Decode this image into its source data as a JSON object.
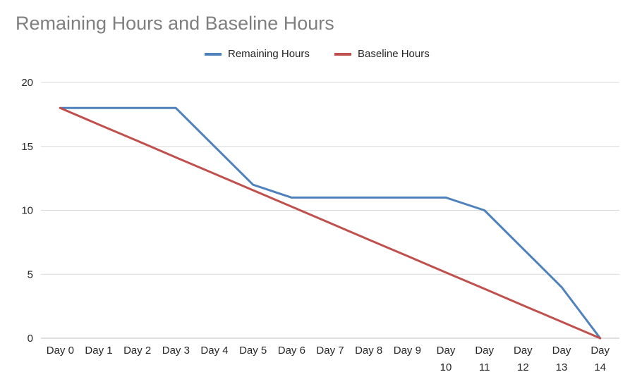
{
  "chart_data": {
    "type": "line",
    "title": "Remaining Hours and Baseline Hours",
    "xlabel": "",
    "ylabel": "",
    "categories": [
      "Day 0",
      "Day 1",
      "Day 2",
      "Day 3",
      "Day 4",
      "Day 5",
      "Day 6",
      "Day 7",
      "Day 8",
      "Day 9",
      "Day 10",
      "Day 11",
      "Day 12",
      "Day 13",
      "Day 14"
    ],
    "ylim": [
      0,
      20
    ],
    "yticks": [
      0,
      5,
      10,
      15,
      20
    ],
    "grid": true,
    "legend_position": "top",
    "series": [
      {
        "name": "Remaining Hours",
        "color": "#4f81bd",
        "values": [
          18,
          18,
          18,
          18,
          15,
          12,
          11,
          11,
          11,
          11,
          11,
          10,
          7,
          4,
          0
        ]
      },
      {
        "name": "Baseline Hours",
        "color": "#c0504d",
        "values": [
          18,
          16.71,
          15.43,
          14.14,
          12.86,
          11.57,
          10.29,
          9,
          7.71,
          6.43,
          5.14,
          3.86,
          2.57,
          1.29,
          0
        ]
      }
    ]
  }
}
